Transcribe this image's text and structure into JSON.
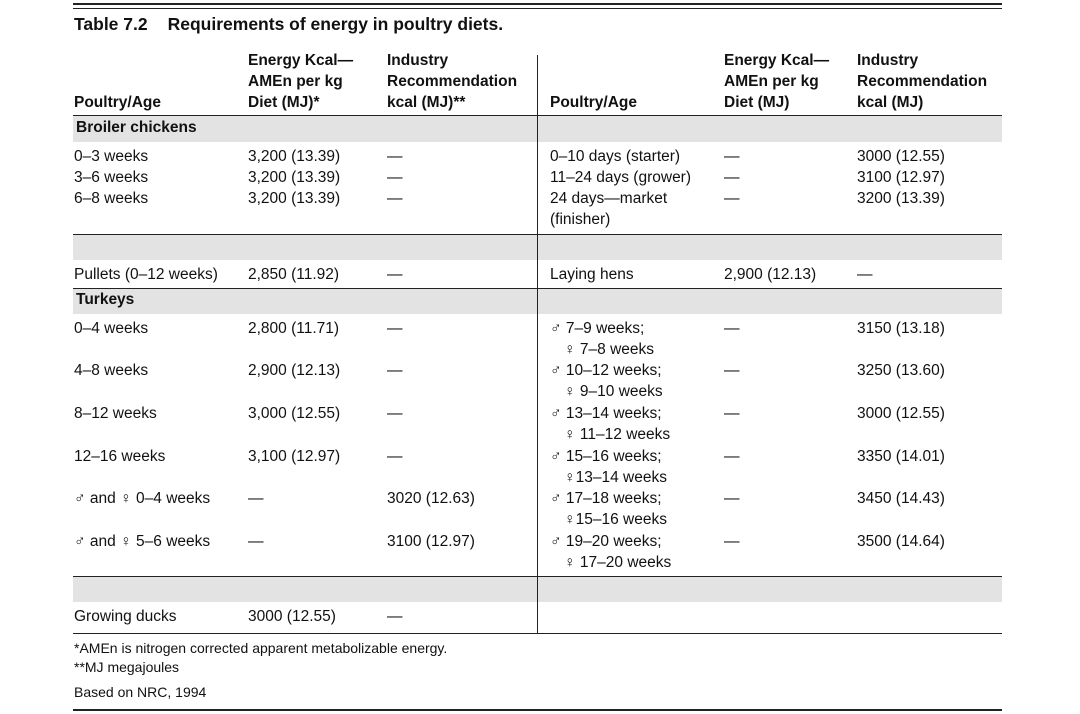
{
  "title": {
    "number": "Table 7.2",
    "text": "Requirements of energy in poultry diets."
  },
  "headers": {
    "left": {
      "col1": "Poultry/Age",
      "col2": [
        "Energy Kcal—",
        "AMEn per kg",
        "Diet (MJ)*"
      ],
      "col3": [
        "Industry",
        "Recommendation",
        "kcal (MJ)**"
      ]
    },
    "right": {
      "col1": "Poultry/Age",
      "col2": [
        "Energy Kcal—",
        "AMEn per kg",
        "Diet (MJ)"
      ],
      "col3": [
        "Industry",
        "Recommendation",
        "kcal (MJ)"
      ]
    }
  },
  "sections": {
    "broiler": "Broiler chickens",
    "turkeys": "Turkeys"
  },
  "broiler_left": [
    {
      "age": "0–3 weeks",
      "energy": "3,200 (13.39)",
      "industry": "—"
    },
    {
      "age": "3–6 weeks",
      "energy": "3,200 (13.39)",
      "industry": "—"
    },
    {
      "age": "6–8 weeks",
      "energy": "3,200 (13.39)",
      "industry": "—"
    }
  ],
  "broiler_right": [
    {
      "age": "0–10 days (starter)",
      "energy": "—",
      "industry": "3000 (12.55)"
    },
    {
      "age": "11–24 days (grower)",
      "energy": "—",
      "industry": "3100 (12.97)"
    },
    {
      "age": "24 days—market",
      "age2": "(finisher)",
      "energy": "—",
      "industry": "3200 (13.39)"
    }
  ],
  "pullets": {
    "age": "Pullets (0–12 weeks)",
    "energy": "2,850 (11.92)",
    "industry": "—"
  },
  "laying": {
    "age": "Laying hens",
    "energy": "2,900 (12.13)",
    "industry": "—"
  },
  "turkey_left": [
    {
      "age": "0–4 weeks",
      "energy": "2,800 (11.71)",
      "industry": "—"
    },
    {
      "age": "4–8 weeks",
      "energy": "2,900 (12.13)",
      "industry": "—"
    },
    {
      "age": "8–12 weeks",
      "energy": "3,000 (12.55)",
      "industry": "—"
    },
    {
      "age": "12–16 weeks",
      "energy": "3,100 (12.97)",
      "industry": "—"
    },
    {
      "age": "♂ and ♀ 0–4 weeks",
      "energy": "—",
      "industry": "3020 (12.63)"
    },
    {
      "age": "♂ and ♀ 5–6 weeks",
      "energy": "—",
      "industry": "3100 (12.97)"
    }
  ],
  "turkey_right": [
    {
      "age": "♂ 7–9 weeks;",
      "age2": "♀ 7–8 weeks",
      "energy": "—",
      "industry": "3150 (13.18)"
    },
    {
      "age": "♂ 10–12 weeks;",
      "age2": "♀ 9–10 weeks",
      "energy": "—",
      "industry": "3250 (13.60)"
    },
    {
      "age": "♂ 13–14 weeks;",
      "age2": "♀ 11–12 weeks",
      "energy": "—",
      "industry": "3000 (12.55)"
    },
    {
      "age": "♂ 15–16 weeks;",
      "age2": "♀13–14 weeks",
      "energy": "—",
      "industry": "3350 (14.01)"
    },
    {
      "age": "♂ 17–18 weeks;",
      "age2": "♀15–16 weeks",
      "energy": "—",
      "industry": "3450 (14.43)"
    },
    {
      "age": "♂ 19–20 weeks;",
      "age2": "♀ 17–20 weeks",
      "energy": "—",
      "industry": "3500 (14.64)"
    }
  ],
  "ducks": {
    "age": "Growing ducks",
    "energy": "3000 (12.55)",
    "industry": "—"
  },
  "footnotes": {
    "amen": "*AMEn is nitrogen corrected apparent metabolizable energy.",
    "mj": "**MJ megajoules",
    "source": "Based on NRC, 1994"
  }
}
